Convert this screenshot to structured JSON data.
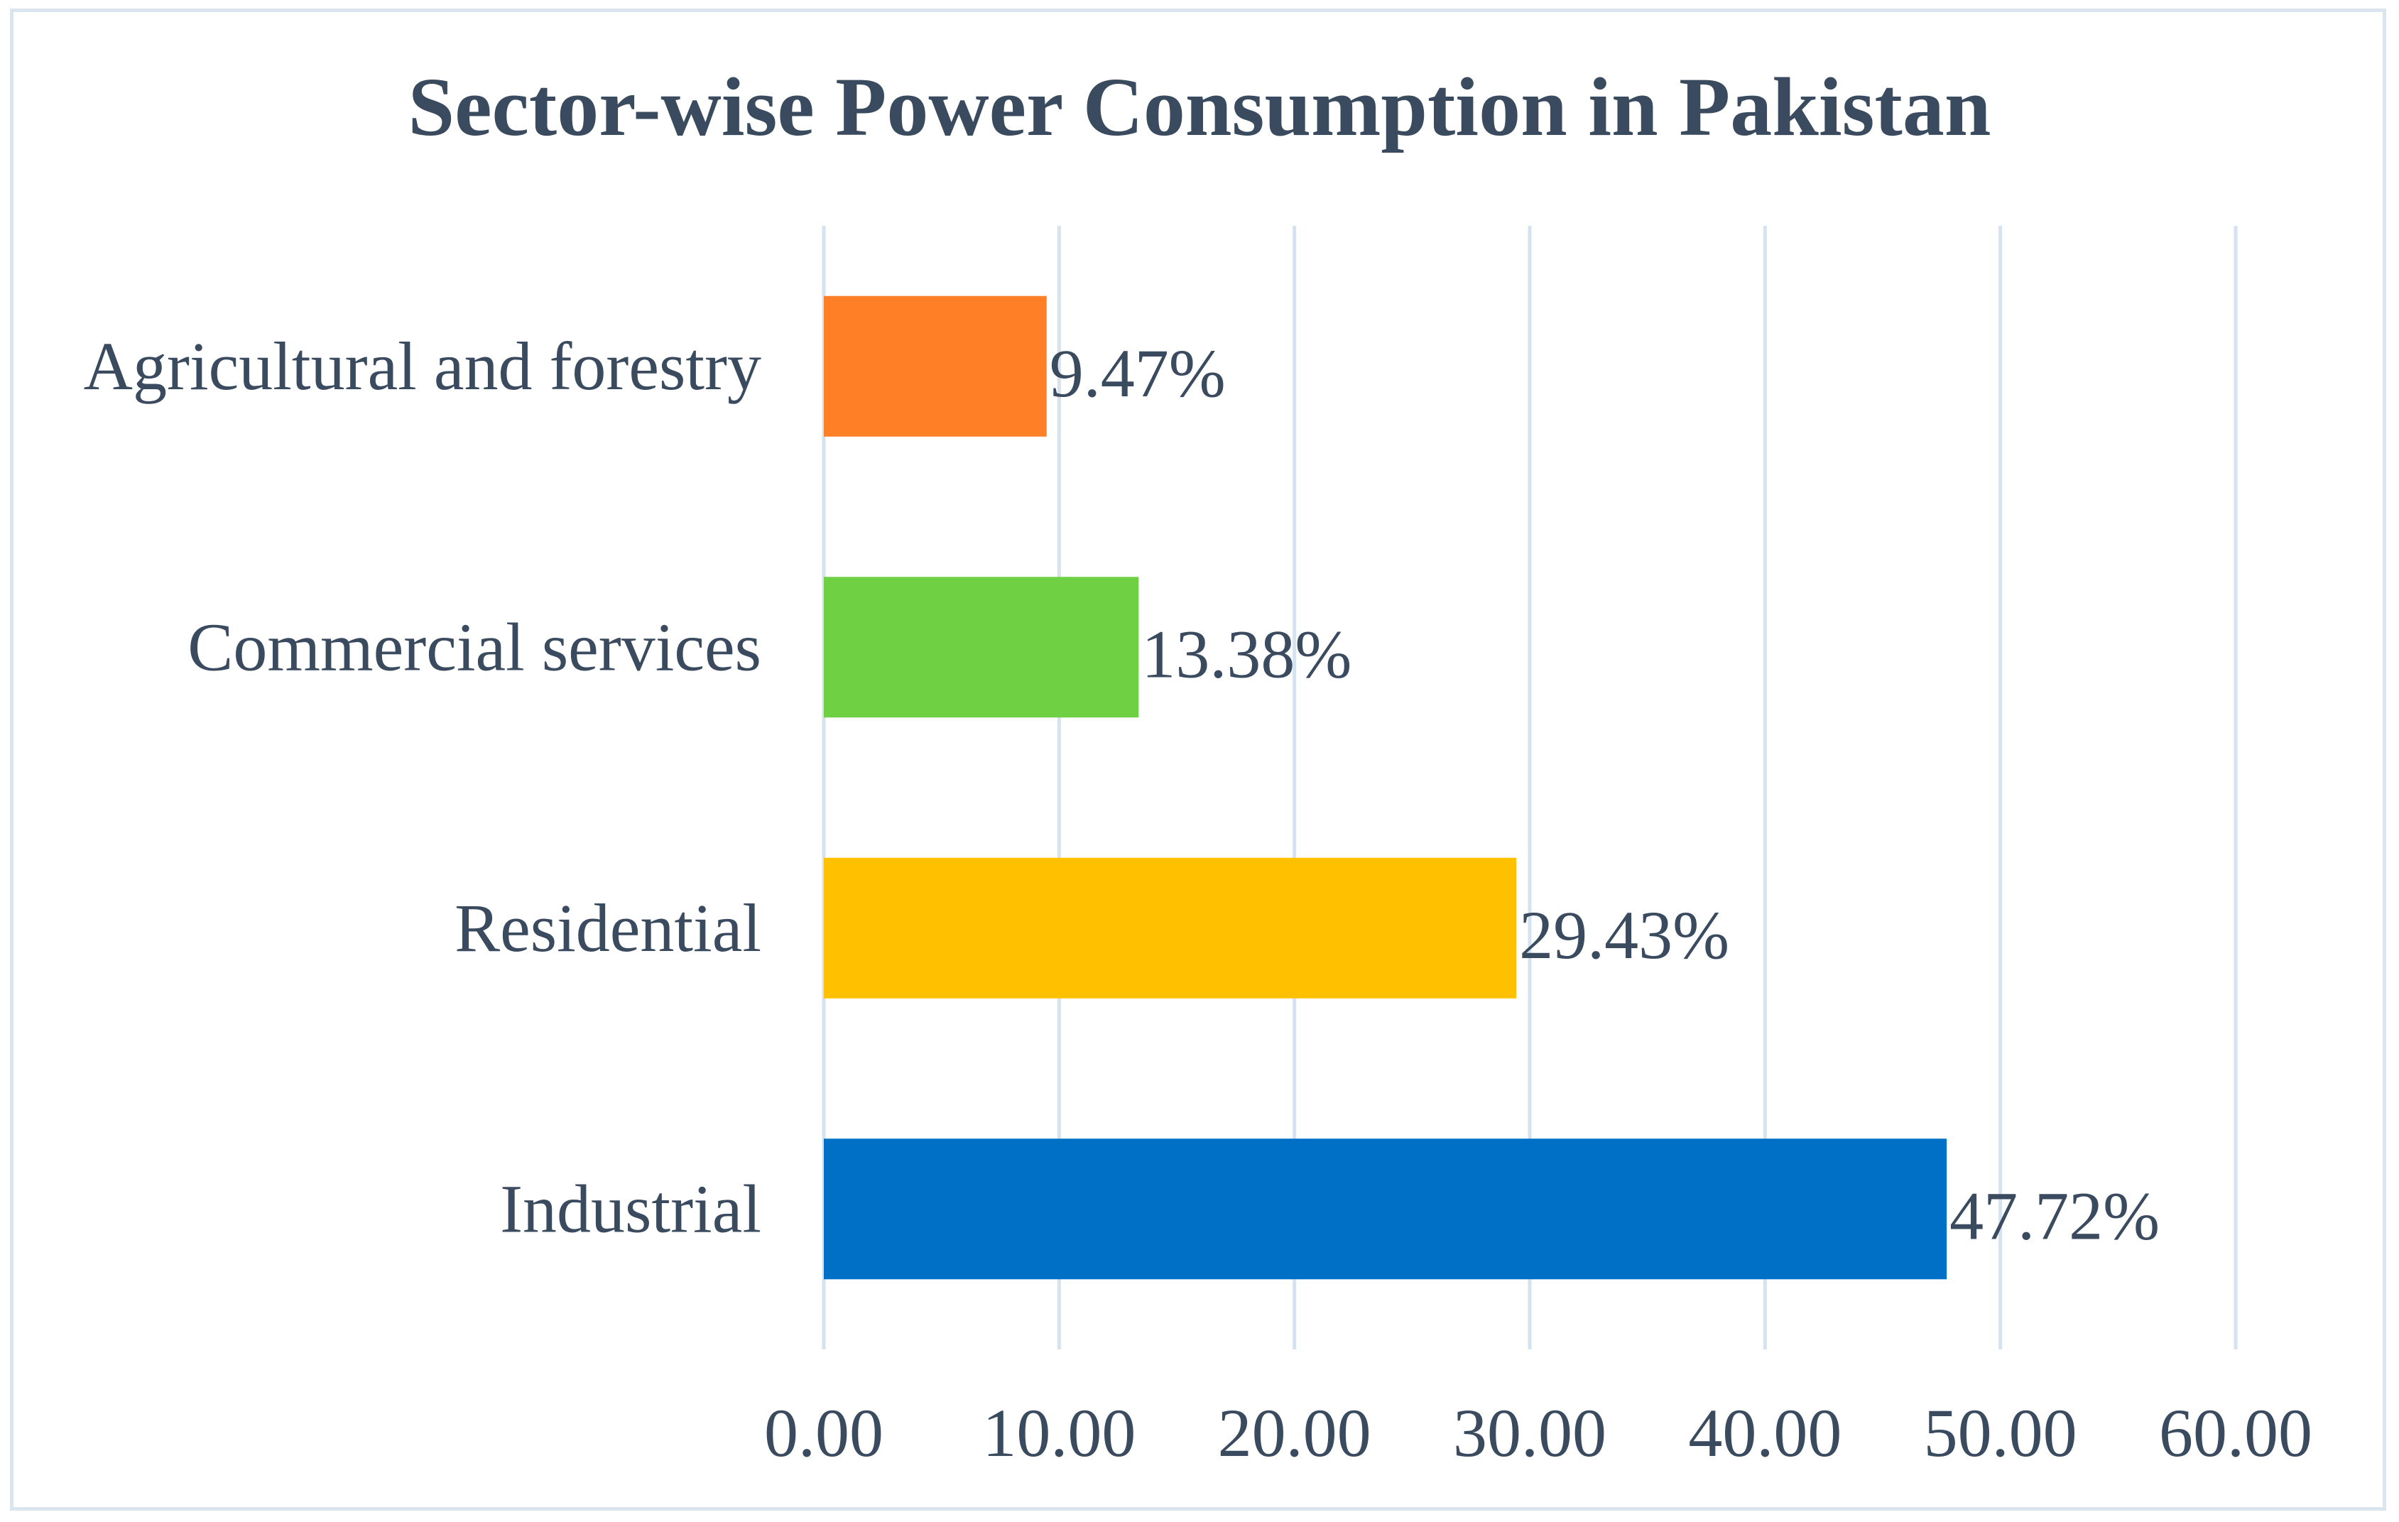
{
  "chart_data": {
    "type": "bar",
    "orientation": "horizontal",
    "title": "Sector-wise Power Consumption in Pakistan",
    "categories": [
      "Industrial",
      "Residential",
      "Commercial services",
      "Agricultural and forestry"
    ],
    "values": [
      47.72,
      29.43,
      13.38,
      9.47
    ],
    "data_labels": [
      "47.72%",
      "29.43%",
      "13.38%",
      "9.47%"
    ],
    "colors": [
      "#0070c6",
      "#ffc000",
      "#70d044",
      "#ff7f27"
    ],
    "xlim": [
      0,
      60
    ],
    "ticks": [
      0,
      10,
      20,
      30,
      40,
      50,
      60
    ],
    "tick_labels": [
      "0.00",
      "10.00",
      "20.00",
      "30.00",
      "40.00",
      "50.00",
      "60.00"
    ],
    "xlabel": "",
    "ylabel": "",
    "grid": true,
    "legend": "none"
  }
}
